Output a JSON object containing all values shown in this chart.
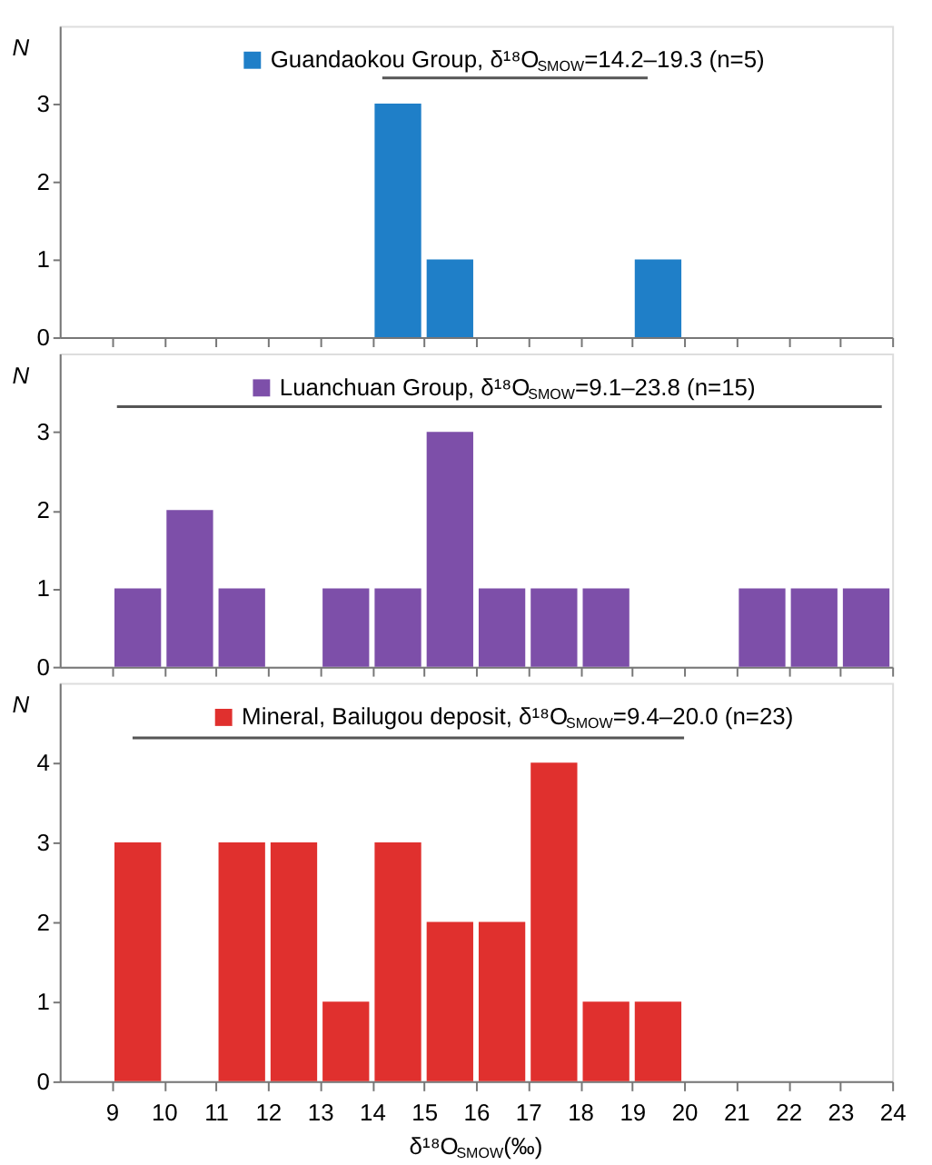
{
  "chart_data": [
    {
      "type": "histogram",
      "ylabel": "N",
      "bins": [
        9,
        10,
        11,
        12,
        13,
        14,
        15,
        16,
        17,
        18,
        19,
        20,
        21,
        22,
        23,
        24
      ],
      "series": [
        {
          "name": "Guandaokou Group, δ¹⁸O$_{SMOW}$=14.2–19.3 (n=5)",
          "color": "#1f7fc8",
          "values": [
            0,
            0,
            0,
            0,
            0,
            3,
            1,
            0,
            0,
            0,
            1,
            0,
            0,
            0,
            0
          ]
        },
        {
          "type": "line",
          "x": [
            14.2,
            19.3
          ],
          "values": [
            3.33,
            3.33
          ],
          "color": "#555555"
        }
      ],
      "xlim": [
        8,
        24
      ],
      "xticks": [
        9,
        10,
        11,
        12,
        13,
        14,
        15,
        16,
        17,
        18,
        19,
        20,
        21,
        22,
        23,
        24
      ],
      "ylim": [
        0,
        4
      ],
      "yticks": [
        0,
        1,
        2,
        3
      ],
      "tick_labels": "y",
      "legend": "top",
      "grid": false
    },
    {
      "type": "histogram",
      "ylabel": "N",
      "bins": [
        9,
        10,
        11,
        12,
        13,
        14,
        15,
        16,
        17,
        18,
        19,
        20,
        21,
        22,
        23,
        24
      ],
      "series": [
        {
          "name": "Luanchuan Group, δ¹⁸O$_{SMOW}$=9.1–23.8 (n=15)",
          "color": "#7d4fa9",
          "values": [
            1,
            2,
            1,
            0,
            1,
            1,
            3,
            1,
            1,
            1,
            0,
            0,
            1,
            1,
            1
          ]
        },
        {
          "type": "line",
          "x": [
            9.1,
            23.8
          ],
          "values": [
            3.32,
            3.32
          ],
          "color": "#555555"
        }
      ],
      "xlim": [
        8,
        24
      ],
      "xticks": [
        9,
        10,
        11,
        12,
        13,
        14,
        15,
        16,
        17,
        18,
        19,
        20,
        21,
        22,
        23,
        24
      ],
      "ylim": [
        0,
        4
      ],
      "yticks": [
        0,
        1,
        2,
        3
      ],
      "tick_labels": "y",
      "legend": "top",
      "grid": false
    },
    {
      "type": "histogram",
      "ylabel": "N",
      "xlabel": "δ¹⁸O$_{SMOW}$(‰)",
      "bins": [
        9,
        10,
        11,
        12,
        13,
        14,
        15,
        16,
        17,
        18,
        19,
        20,
        21,
        22,
        23,
        24
      ],
      "series": [
        {
          "name": "Mineral, Bailugou deposit, δ¹⁸O$_{SMOW}$=9.4–20.0 (n=23)",
          "color": "#e0302e",
          "values": [
            3,
            0,
            3,
            3,
            1,
            3,
            2,
            2,
            4,
            1,
            1,
            0,
            0,
            0,
            0
          ]
        },
        {
          "type": "line",
          "x": [
            9.4,
            20.0
          ],
          "values": [
            4.31,
            4.31
          ],
          "color": "#555555"
        }
      ],
      "xlim": [
        8,
        24
      ],
      "xticks": [
        9,
        10,
        11,
        12,
        13,
        14,
        15,
        16,
        17,
        18,
        19,
        20,
        21,
        22,
        23,
        24
      ],
      "ylim": [
        0,
        5
      ],
      "yticks": [
        0,
        1,
        2,
        3,
        4
      ],
      "legend": "top",
      "grid": false
    }
  ]
}
